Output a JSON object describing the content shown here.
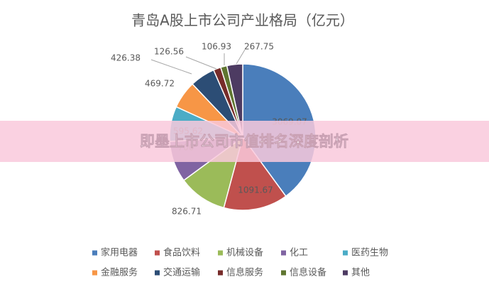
{
  "chart_data": {
    "type": "pie",
    "title": "青岛A股上市公司产业格局（亿元）",
    "categories": [
      "家用电器",
      "食品饮料",
      "机械设备",
      "化工",
      "医药生物",
      "金融服务",
      "交通运输",
      "信息服务",
      "信息设备",
      "其他"
    ],
    "values": [
      3069.07,
      1091.67,
      826.71,
      700,
      595.62,
      469.72,
      426.38,
      126.56,
      106.93,
      267.75
    ],
    "colors": [
      "#4a7ebb",
      "#c0504d",
      "#9bbb59",
      "#8064a2",
      "#4bacc6",
      "#f79646",
      "#2c4d75",
      "#772c2a",
      "#5f7530",
      "#4d3b62"
    ],
    "legend": "bottom"
  },
  "banner": "即墨上市公司市值排名深度剖析"
}
